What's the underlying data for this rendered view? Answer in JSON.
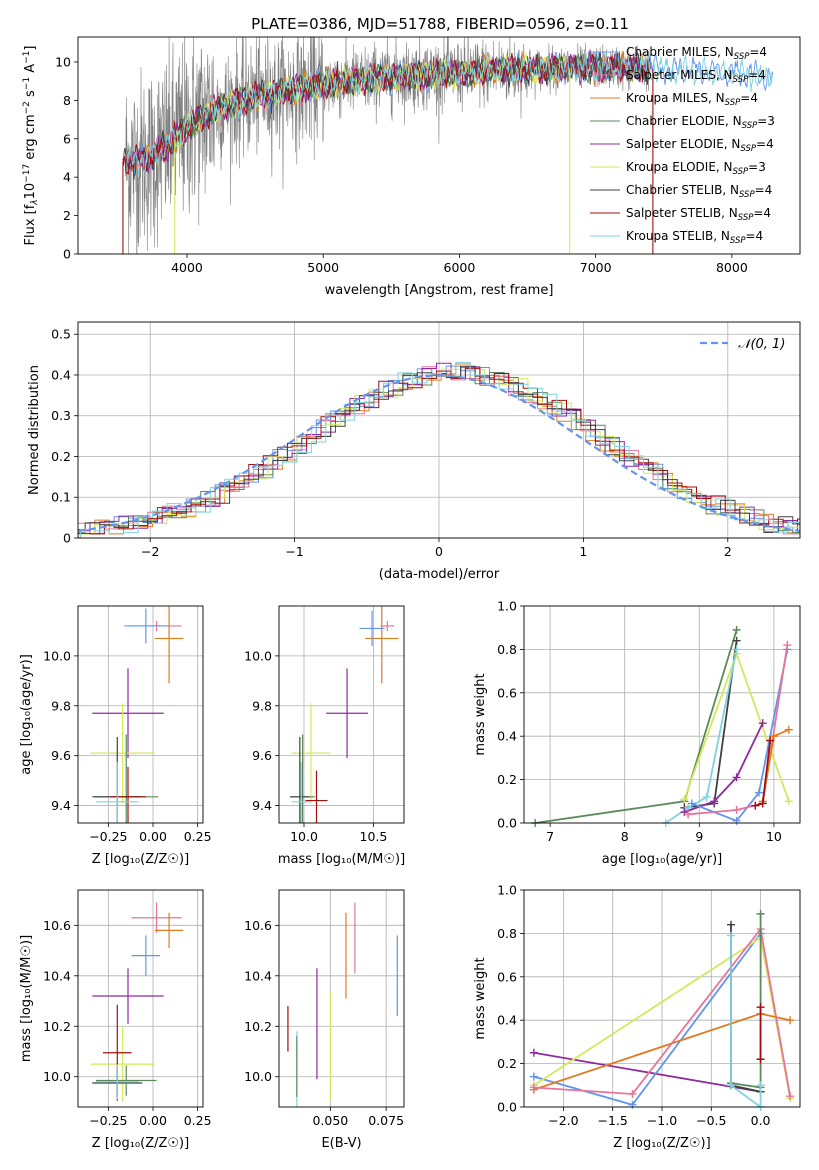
{
  "figure": {
    "title": "PLATE=0386, MJD=51788, FIBERID=0596, z=0.11"
  },
  "colors": {
    "Chabrier MILES": "#6495ED",
    "Salpeter MILES": "#E8739A",
    "Kroupa MILES": "#E07B20",
    "Chabrier ELODIE": "#5A8A5A",
    "Salpeter ELODIE": "#8E2C9E",
    "Kroupa ELODIE": "#D4E85A",
    "Chabrier STELIB": "#404040",
    "Salpeter STELIB": "#A01010",
    "Kroupa STELIB": "#7FD3E0",
    "gaussian": "#6495ED",
    "data": "#808080"
  },
  "chart_data": [
    {
      "id": "spectrum",
      "type": "line",
      "xlabel": "wavelength [Angstrom, rest frame]",
      "ylabel_parts": [
        "Flux [f",
        "λ",
        "10",
        "−17",
        " erg cm",
        "−2",
        " s",
        "−1",
        " A",
        "−1",
        "]"
      ],
      "xlim": [
        3200,
        8500
      ],
      "ylim": [
        0,
        11.3
      ],
      "xticks": [
        4000,
        5000,
        6000,
        7000,
        8000
      ],
      "yticks": [
        0,
        2,
        4,
        6,
        8,
        10
      ],
      "legend": {
        "position": "top-right",
        "entries": [
          {
            "base": "Chabrier MILES, N",
            "sub": "SSP",
            "tail": "=4",
            "key": "Chabrier MILES"
          },
          {
            "base": "Salpeter MILES, N",
            "sub": "SSP",
            "tail": "=4",
            "key": "Salpeter MILES"
          },
          {
            "base": "Kroupa MILES, N",
            "sub": "SSP",
            "tail": "=4",
            "key": "Kroupa MILES"
          },
          {
            "base": "Chabrier ELODIE, N",
            "sub": "SSP",
            "tail": "=3",
            "key": "Chabrier ELODIE"
          },
          {
            "base": "Salpeter ELODIE, N",
            "sub": "SSP",
            "tail": "=4",
            "key": "Salpeter ELODIE"
          },
          {
            "base": "Kroupa ELODIE, N",
            "sub": "SSP",
            "tail": "=3",
            "key": "Kroupa ELODIE"
          },
          {
            "base": "Chabrier STELIB, N",
            "sub": "SSP",
            "tail": "=4",
            "key": "Chabrier STELIB"
          },
          {
            "base": "Salpeter STELIB, N",
            "sub": "SSP",
            "tail": "=4",
            "key": "Salpeter STELIB"
          },
          {
            "base": "Kroupa STELIB, N",
            "sub": "SSP",
            "tail": "=4",
            "key": "Kroupa STELIB"
          }
        ]
      },
      "model_continuum": {
        "x": [
          3600,
          3700,
          3850,
          4000,
          4200,
          4500,
          4800,
          5200,
          5600,
          6000,
          6400,
          6800,
          7200,
          7600,
          8000,
          8300
        ],
        "y": [
          4.8,
          4.9,
          5.6,
          6.6,
          7.5,
          8.2,
          8.6,
          9.0,
          9.3,
          9.4,
          9.6,
          9.7,
          9.7,
          9.6,
          9.4,
          9.2
        ]
      },
      "data_range": [
        3550,
        7400
      ],
      "dropouts": [
        {
          "x": 3530,
          "series": "Salpeter STELIB"
        },
        {
          "x": 3910,
          "series": "Kroupa ELODIE"
        },
        {
          "x": 6810,
          "series": "Kroupa ELODIE"
        },
        {
          "x": 7420,
          "series": "Salpeter STELIB"
        }
      ]
    },
    {
      "id": "residuals",
      "type": "histogram",
      "xlabel": "(data-model)/error",
      "ylabel": "Normed distribution",
      "xlim": [
        -2.5,
        2.5
      ],
      "ylim": [
        0,
        0.53
      ],
      "xticks": [
        -2,
        -1,
        0,
        1,
        2
      ],
      "yticks": [
        0.0,
        0.1,
        0.2,
        0.3,
        0.4,
        0.5
      ],
      "grid": true,
      "legend": {
        "position": "top-right",
        "label": "𝒩(0, 1)"
      },
      "bin_width": 0.1
    },
    {
      "id": "z-age",
      "type": "scatter",
      "xlabel": "Z [log₁₀(Z/Z☉)]",
      "ylabel": "age  [log₁₀(age/yr)]",
      "xlim": [
        -0.42,
        0.28
      ],
      "ylim": [
        9.33,
        10.2
      ],
      "xticks": [
        -0.25,
        0.0,
        0.25
      ],
      "yticks": [
        9.4,
        9.6,
        9.8,
        10.0
      ],
      "grid": true,
      "points": [
        {
          "s": "Salpeter MILES",
          "x": 0.02,
          "y": 10.12,
          "xerr": 0.14,
          "yerr": 0.02
        },
        {
          "s": "Kroupa MILES",
          "x": 0.09,
          "y": 10.07,
          "xerr": 0.08,
          "yerr": 0.18
        },
        {
          "s": "Chabrier MILES",
          "x": -0.04,
          "y": 10.12,
          "xerr": 0.12,
          "yerr": 0.07
        },
        {
          "s": "Salpeter ELODIE",
          "x": -0.14,
          "y": 9.77,
          "xerr": 0.2,
          "yerr": 0.18
        },
        {
          "s": "Kroupa ELODIE",
          "x": -0.17,
          "y": 9.61,
          "xerr": 0.18,
          "yerr": 0.2
        },
        {
          "s": "Chabrier ELODIE",
          "x": -0.15,
          "y": 9.435,
          "xerr": 0.18,
          "yerr": 0.25
        },
        {
          "s": "Chabrier STELIB",
          "x": -0.2,
          "y": 9.435,
          "xerr": 0.14,
          "yerr": 0.24
        },
        {
          "s": "Salpeter STELIB",
          "x": -0.14,
          "y": 9.435,
          "xerr": 0.1,
          "yerr": 0.12
        },
        {
          "s": "Kroupa STELIB",
          "x": -0.2,
          "y": 9.415,
          "xerr": 0.12,
          "yerr": 0.16
        }
      ]
    },
    {
      "id": "mass-age",
      "type": "scatter",
      "xlabel": "mass [log₁₀(M/M☉)]",
      "ylabel": "",
      "xlim": [
        9.82,
        10.72
      ],
      "ylim": [
        9.33,
        10.2
      ],
      "xticks": [
        10.0,
        10.5
      ],
      "yticks": [
        9.4,
        9.6,
        9.8,
        10.0
      ],
      "grid": true,
      "points": [
        {
          "s": "Salpeter MILES",
          "x": 10.6,
          "y": 10.12,
          "xerr": 0.05,
          "yerr": 0.02
        },
        {
          "s": "Kroupa MILES",
          "x": 10.56,
          "y": 10.07,
          "xerr": 0.12,
          "yerr": 0.18
        },
        {
          "s": "Chabrier MILES",
          "x": 10.49,
          "y": 10.11,
          "xerr": 0.09,
          "yerr": 0.07
        },
        {
          "s": "Salpeter ELODIE",
          "x": 10.31,
          "y": 9.77,
          "xerr": 0.15,
          "yerr": 0.18
        },
        {
          "s": "Kroupa ELODIE",
          "x": 10.05,
          "y": 9.61,
          "xerr": 0.14,
          "yerr": 0.2
        },
        {
          "s": "Chabrier ELODIE",
          "x": 9.99,
          "y": 9.435,
          "xerr": 0.09,
          "yerr": 0.25
        },
        {
          "s": "Chabrier STELIB",
          "x": 9.97,
          "y": 9.435,
          "xerr": 0.07,
          "yerr": 0.24
        },
        {
          "s": "Salpeter STELIB",
          "x": 10.09,
          "y": 9.42,
          "xerr": 0.08,
          "yerr": 0.12
        },
        {
          "s": "Kroupa STELIB",
          "x": 9.98,
          "y": 9.415,
          "xerr": 0.07,
          "yerr": 0.16
        }
      ]
    },
    {
      "id": "weight-age",
      "type": "line",
      "xlabel": "age  [log₁₀(age/yr)]",
      "ylabel": "mass weight",
      "xlim": [
        6.65,
        10.35
      ],
      "ylim": [
        0,
        1.0
      ],
      "xticks": [
        7,
        8,
        9,
        10
      ],
      "yticks": [
        0.0,
        0.2,
        0.4,
        0.6,
        0.8,
        1.0
      ],
      "grid": true,
      "series": [
        {
          "s": "Chabrier ELODIE",
          "x": [
            6.8,
            8.8,
            9.5
          ],
          "y": [
            0.0,
            0.1,
            0.89
          ]
        },
        {
          "s": "Chabrier STELIB",
          "x": [
            8.8,
            9.2,
            9.5
          ],
          "y": [
            0.07,
            0.09,
            0.84
          ]
        },
        {
          "s": "Kroupa ELODIE",
          "x": [
            8.8,
            9.5,
            10.2
          ],
          "y": [
            0.11,
            0.78,
            0.1
          ]
        },
        {
          "s": "Kroupa STELIB",
          "x": [
            8.55,
            8.85,
            9.1,
            9.5
          ],
          "y": [
            0.0,
            0.07,
            0.12,
            0.8
          ]
        },
        {
          "s": "Salpeter ELODIE",
          "x": [
            8.8,
            9.2,
            9.5,
            9.85
          ],
          "y": [
            0.05,
            0.1,
            0.21,
            0.46
          ]
        },
        {
          "s": "Chabrier MILES",
          "x": [
            8.9,
            9.5,
            9.8,
            10.18
          ],
          "y": [
            0.09,
            0.01,
            0.14,
            0.8
          ]
        },
        {
          "s": "Salpeter MILES",
          "x": [
            8.85,
            9.5,
            9.85,
            10.18
          ],
          "y": [
            0.04,
            0.06,
            0.09,
            0.82
          ]
        },
        {
          "s": "Kroupa MILES",
          "x": [
            9.85,
            10.0,
            10.2
          ],
          "y": [
            0.1,
            0.4,
            0.43
          ]
        },
        {
          "s": "Salpeter STELIB",
          "x": [
            9.75,
            9.85,
            9.95
          ],
          "y": [
            0.08,
            0.09,
            0.38
          ]
        }
      ]
    },
    {
      "id": "z-mass",
      "type": "scatter",
      "xlabel": "Z [log₁₀(Z/Z☉)]",
      "ylabel": "mass [log₁₀(M/M☉)]",
      "xlim": [
        -0.42,
        0.28
      ],
      "ylim": [
        9.88,
        10.74
      ],
      "xticks": [
        -0.25,
        0.0,
        0.25
      ],
      "yticks": [
        10.0,
        10.2,
        10.4,
        10.6
      ],
      "grid": true,
      "points": [
        {
          "s": "Salpeter MILES",
          "x": 0.02,
          "y": 10.63,
          "xerr": 0.14,
          "yerr": 0.06
        },
        {
          "s": "Kroupa MILES",
          "x": 0.09,
          "y": 10.58,
          "xerr": 0.08,
          "yerr": 0.07
        },
        {
          "s": "Chabrier MILES",
          "x": -0.04,
          "y": 10.48,
          "xerr": 0.08,
          "yerr": 0.08
        },
        {
          "s": "Salpeter ELODIE",
          "x": -0.14,
          "y": 10.32,
          "xerr": 0.2,
          "yerr": 0.11
        },
        {
          "s": "Kroupa ELODIE",
          "x": -0.17,
          "y": 10.05,
          "xerr": 0.18,
          "yerr": 0.15
        },
        {
          "s": "Salpeter STELIB",
          "x": -0.2,
          "y": 10.095,
          "xerr": 0.08,
          "yerr": 0.19
        },
        {
          "s": "Chabrier STELIB",
          "x": -0.2,
          "y": 9.975,
          "xerr": 0.14,
          "yerr": 0.05
        },
        {
          "s": "Chabrier ELODIE",
          "x": -0.15,
          "y": 9.985,
          "xerr": 0.17,
          "yerr": 0.06
        },
        {
          "s": "Kroupa STELIB",
          "x": -0.2,
          "y": 9.98,
          "xerr": 0.12,
          "yerr": 0.07
        }
      ]
    },
    {
      "id": "ebv-mass",
      "type": "scatter",
      "xlabel": "E(B-V)",
      "ylabel": "",
      "xlim": [
        0.027,
        0.083
      ],
      "ylim": [
        9.88,
        10.74
      ],
      "xticks": [
        0.05,
        0.075
      ],
      "yticks": [
        10.0,
        10.2,
        10.4,
        10.6
      ],
      "grid": true,
      "points": [
        {
          "s": "Salpeter STELIB",
          "x": 0.031,
          "y": 10.19,
          "yerr": 0.09
        },
        {
          "s": "Kroupa STELIB",
          "x": 0.035,
          "y": 10.03,
          "yerr": 0.15
        },
        {
          "s": "Chabrier ELODIE",
          "x": 0.035,
          "y": 10.04,
          "yerr": 0.12
        },
        {
          "s": "Salpeter ELODIE",
          "x": 0.044,
          "y": 10.21,
          "yerr": 0.22
        },
        {
          "s": "Kroupa ELODIE",
          "x": 0.05,
          "y": 10.12,
          "yerr": 0.22
        },
        {
          "s": "Kroupa MILES",
          "x": 0.057,
          "y": 10.48,
          "yerr": 0.17
        },
        {
          "s": "Salpeter MILES",
          "x": 0.061,
          "y": 10.55,
          "yerr": 0.14
        },
        {
          "s": "Chabrier MILES",
          "x": 0.08,
          "y": 10.4,
          "yerr": 0.16
        }
      ]
    },
    {
      "id": "weight-z",
      "type": "line",
      "xlabel": "Z [log₁₀(Z/Z☉)]",
      "ylabel": "mass weight",
      "xlim": [
        -2.4,
        0.4
      ],
      "ylim": [
        0,
        1.0
      ],
      "xticks": [
        -2.0,
        -1.5,
        -1.0,
        -0.5,
        0.0
      ],
      "yticks": [
        0.0,
        0.2,
        0.4,
        0.6,
        0.8,
        1.0
      ],
      "grid": true,
      "series": [
        {
          "s": "Salpeter ELODIE",
          "x": [
            -2.3,
            0.0
          ],
          "y": [
            0.25,
            0.07
          ]
        },
        {
          "s": "Chabrier MILES",
          "x": [
            -2.3,
            -1.3,
            0.0
          ],
          "y": [
            0.14,
            0.01,
            0.8
          ]
        },
        {
          "s": "Kroupa ELODIE",
          "x": [
            -2.3,
            0.0,
            0.3
          ],
          "y": [
            0.1,
            0.78,
            0.04
          ]
        },
        {
          "s": "Kroupa MILES",
          "x": [
            -2.3,
            0.0,
            0.3
          ],
          "y": [
            0.08,
            0.43,
            0.4
          ]
        },
        {
          "s": "Salpeter MILES",
          "x": [
            -2.3,
            -1.3,
            0.0,
            0.3
          ],
          "y": [
            0.09,
            0.06,
            0.82,
            0.05
          ]
        },
        {
          "s": "Chabrier STELIB",
          "x": [
            -0.3,
            -0.3,
            0.0
          ],
          "y": [
            0.84,
            0.1,
            0.07
          ]
        },
        {
          "s": "Chabrier ELODIE",
          "x": [
            -0.3,
            0.0,
            0.0
          ],
          "y": [
            0.11,
            0.09,
            0.89
          ]
        },
        {
          "s": "Kroupa STELIB",
          "x": [
            -0.3,
            -0.3,
            0.0,
            0.0
          ],
          "y": [
            0.79,
            0.1,
            0.0,
            0.1
          ]
        },
        {
          "s": "Salpeter STELIB",
          "x": [
            0.0,
            0.0
          ],
          "y": [
            0.46,
            0.22
          ]
        }
      ]
    }
  ]
}
